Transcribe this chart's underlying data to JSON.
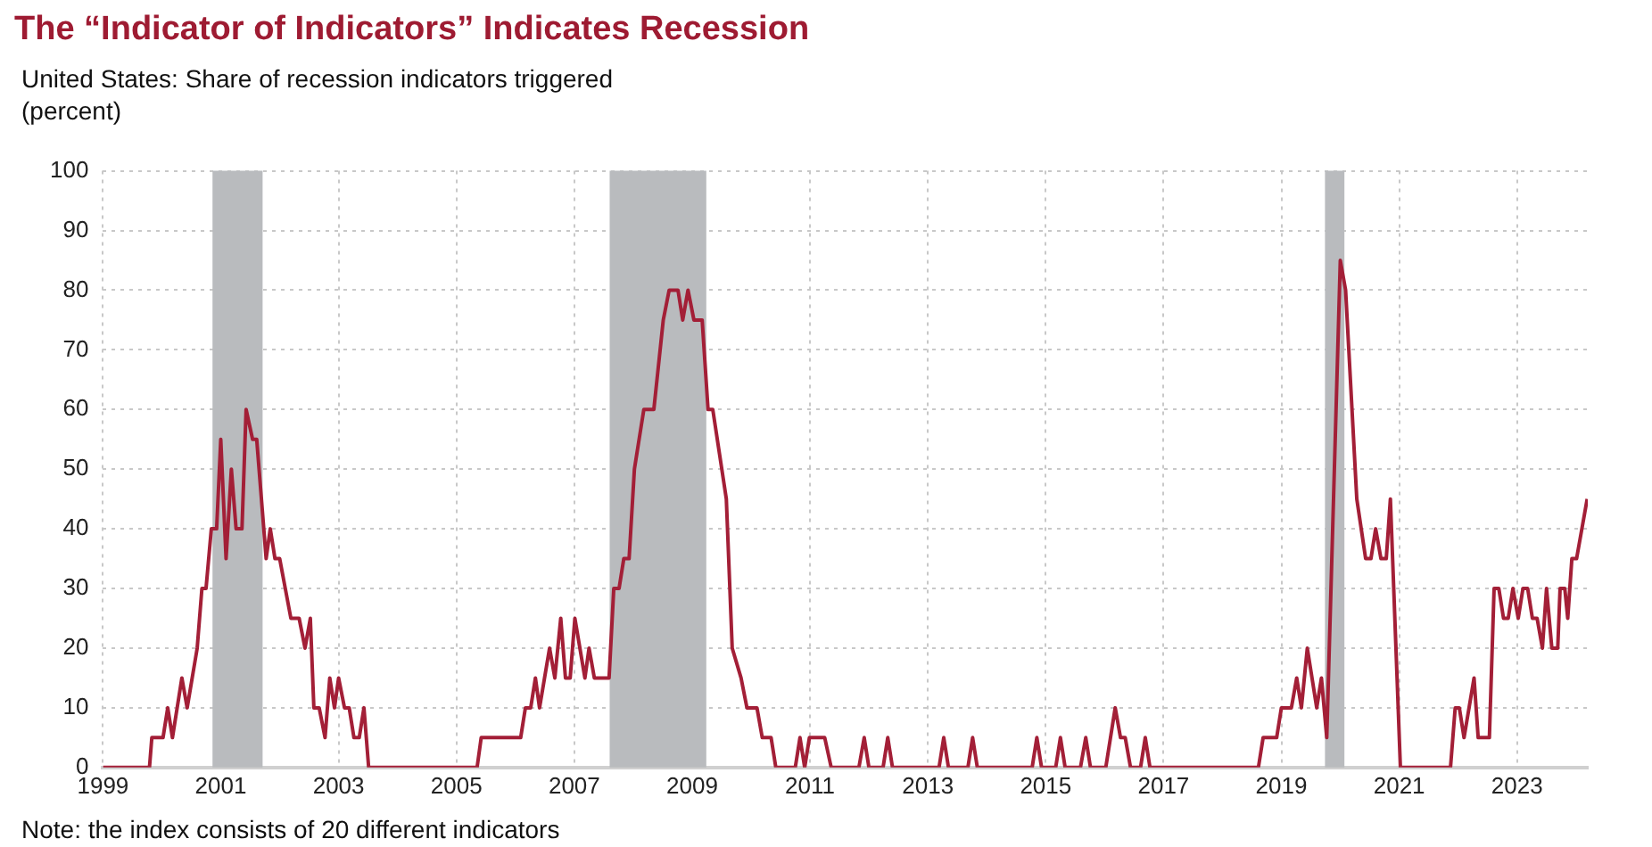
{
  "chart_data": {
    "type": "line",
    "title": "The “Indicator of Indicators” Indicates Recession",
    "subtitle": "United States: Share of recession indicators triggered",
    "ylabel": "(percent)",
    "annotations": [
      "Note: the index consists of 20 different indicators"
    ],
    "x": [
      1999.0,
      1999.79,
      1999.83,
      2000.02,
      2000.1,
      2000.18,
      2000.34,
      2000.43,
      2000.6,
      2000.68,
      2000.75,
      2000.84,
      2000.93,
      2001.0,
      2001.09,
      2001.18,
      2001.26,
      2001.36,
      2001.43,
      2001.54,
      2001.61,
      2001.77,
      2001.84,
      2001.92,
      2002.0,
      2002.19,
      2002.33,
      2002.43,
      2002.52,
      2002.58,
      2002.67,
      2002.77,
      2002.85,
      2002.93,
      2003.0,
      2003.1,
      2003.18,
      2003.26,
      2003.35,
      2003.43,
      2003.51,
      2005.35,
      2005.42,
      2006.09,
      2006.17,
      2006.26,
      2006.34,
      2006.41,
      2006.58,
      2006.67,
      2006.77,
      2006.85,
      2006.93,
      2007.01,
      2007.18,
      2007.25,
      2007.34,
      2007.59,
      2007.67,
      2007.76,
      2007.84,
      2007.93,
      2008.02,
      2008.18,
      2008.35,
      2008.51,
      2008.61,
      2008.76,
      2008.84,
      2008.93,
      2009.03,
      2009.17,
      2009.27,
      2009.35,
      2009.58,
      2009.68,
      2009.83,
      2009.93,
      2010.1,
      2010.19,
      2010.34,
      2010.42,
      2010.75,
      2010.83,
      2010.91,
      2010.99,
      2011.25,
      2011.36,
      2011.83,
      2011.92,
      2012.0,
      2012.24,
      2012.32,
      2012.4,
      2013.19,
      2013.27,
      2013.35,
      2013.68,
      2013.76,
      2013.84,
      2014.77,
      2014.85,
      2014.93,
      2015.17,
      2015.25,
      2015.33,
      2015.59,
      2015.68,
      2015.76,
      2016.02,
      2016.18,
      2016.27,
      2016.35,
      2016.44,
      2016.61,
      2016.69,
      2016.77,
      2018.61,
      2018.69,
      2018.92,
      2019.0,
      2019.17,
      2019.26,
      2019.34,
      2019.44,
      2019.6,
      2019.68,
      2019.77,
      2020.0,
      2020.09,
      2020.28,
      2020.43,
      2020.52,
      2020.6,
      2020.69,
      2020.78,
      2020.85,
      2021.02,
      2021.87,
      2021.95,
      2022.02,
      2022.1,
      2022.27,
      2022.34,
      2022.53,
      2022.61,
      2022.69,
      2022.77,
      2022.85,
      2022.93,
      2023.02,
      2023.1,
      2023.18,
      2023.26,
      2023.34,
      2023.43,
      2023.5,
      2023.59,
      2023.69,
      2023.73,
      2023.81,
      2023.86,
      2023.93,
      2024.01,
      2024.19
    ],
    "values": [
      0,
      0,
      5,
      5,
      10,
      5,
      15,
      10,
      20,
      30,
      30,
      40,
      40,
      55,
      35,
      50,
      40,
      40,
      60,
      55,
      55,
      35,
      40,
      35,
      35,
      25,
      25,
      20,
      25,
      10,
      10,
      5,
      15,
      10,
      15,
      10,
      10,
      5,
      5,
      10,
      0,
      0,
      5,
      5,
      10,
      10,
      15,
      10,
      20,
      15,
      25,
      15,
      15,
      25,
      15,
      20,
      15,
      15,
      30,
      30,
      35,
      35,
      50,
      60,
      60,
      75,
      80,
      80,
      75,
      80,
      75,
      75,
      60,
      60,
      45,
      20,
      15,
      10,
      10,
      5,
      5,
      0,
      0,
      5,
      0,
      5,
      5,
      0,
      0,
      5,
      0,
      0,
      5,
      0,
      0,
      5,
      0,
      0,
      5,
      0,
      0,
      5,
      0,
      0,
      5,
      0,
      0,
      5,
      0,
      0,
      10,
      5,
      5,
      0,
      0,
      5,
      0,
      0,
      5,
      5,
      10,
      10,
      15,
      10,
      20,
      10,
      15,
      5,
      85,
      80,
      45,
      35,
      35,
      40,
      35,
      35,
      45,
      0,
      0,
      10,
      10,
      5,
      15,
      5,
      5,
      30,
      30,
      25,
      25,
      30,
      25,
      30,
      30,
      25,
      25,
      20,
      30,
      20,
      20,
      30,
      30,
      25,
      35,
      35,
      45
    ],
    "color": "#a31f37",
    "marker": "none",
    "line_style": "solid",
    "xlim": [
      1999,
      2024.2
    ],
    "ylim": [
      0,
      100
    ],
    "xticks": [
      1999,
      2001,
      2003,
      2005,
      2007,
      2009,
      2011,
      2013,
      2015,
      2017,
      2019,
      2021,
      2023
    ],
    "yticks": [
      0,
      10,
      20,
      30,
      40,
      50,
      60,
      70,
      80,
      90,
      100
    ],
    "grid": true,
    "legend": false,
    "bands": [
      {
        "axis": "x",
        "from": 2000.86,
        "to": 2001.71,
        "color": "#b9bbbe"
      },
      {
        "axis": "x",
        "from": 2007.6,
        "to": 2009.24,
        "color": "#b9bbbe"
      },
      {
        "axis": "x",
        "from": 2019.74,
        "to": 2020.07,
        "color": "#b9bbbe"
      }
    ]
  }
}
